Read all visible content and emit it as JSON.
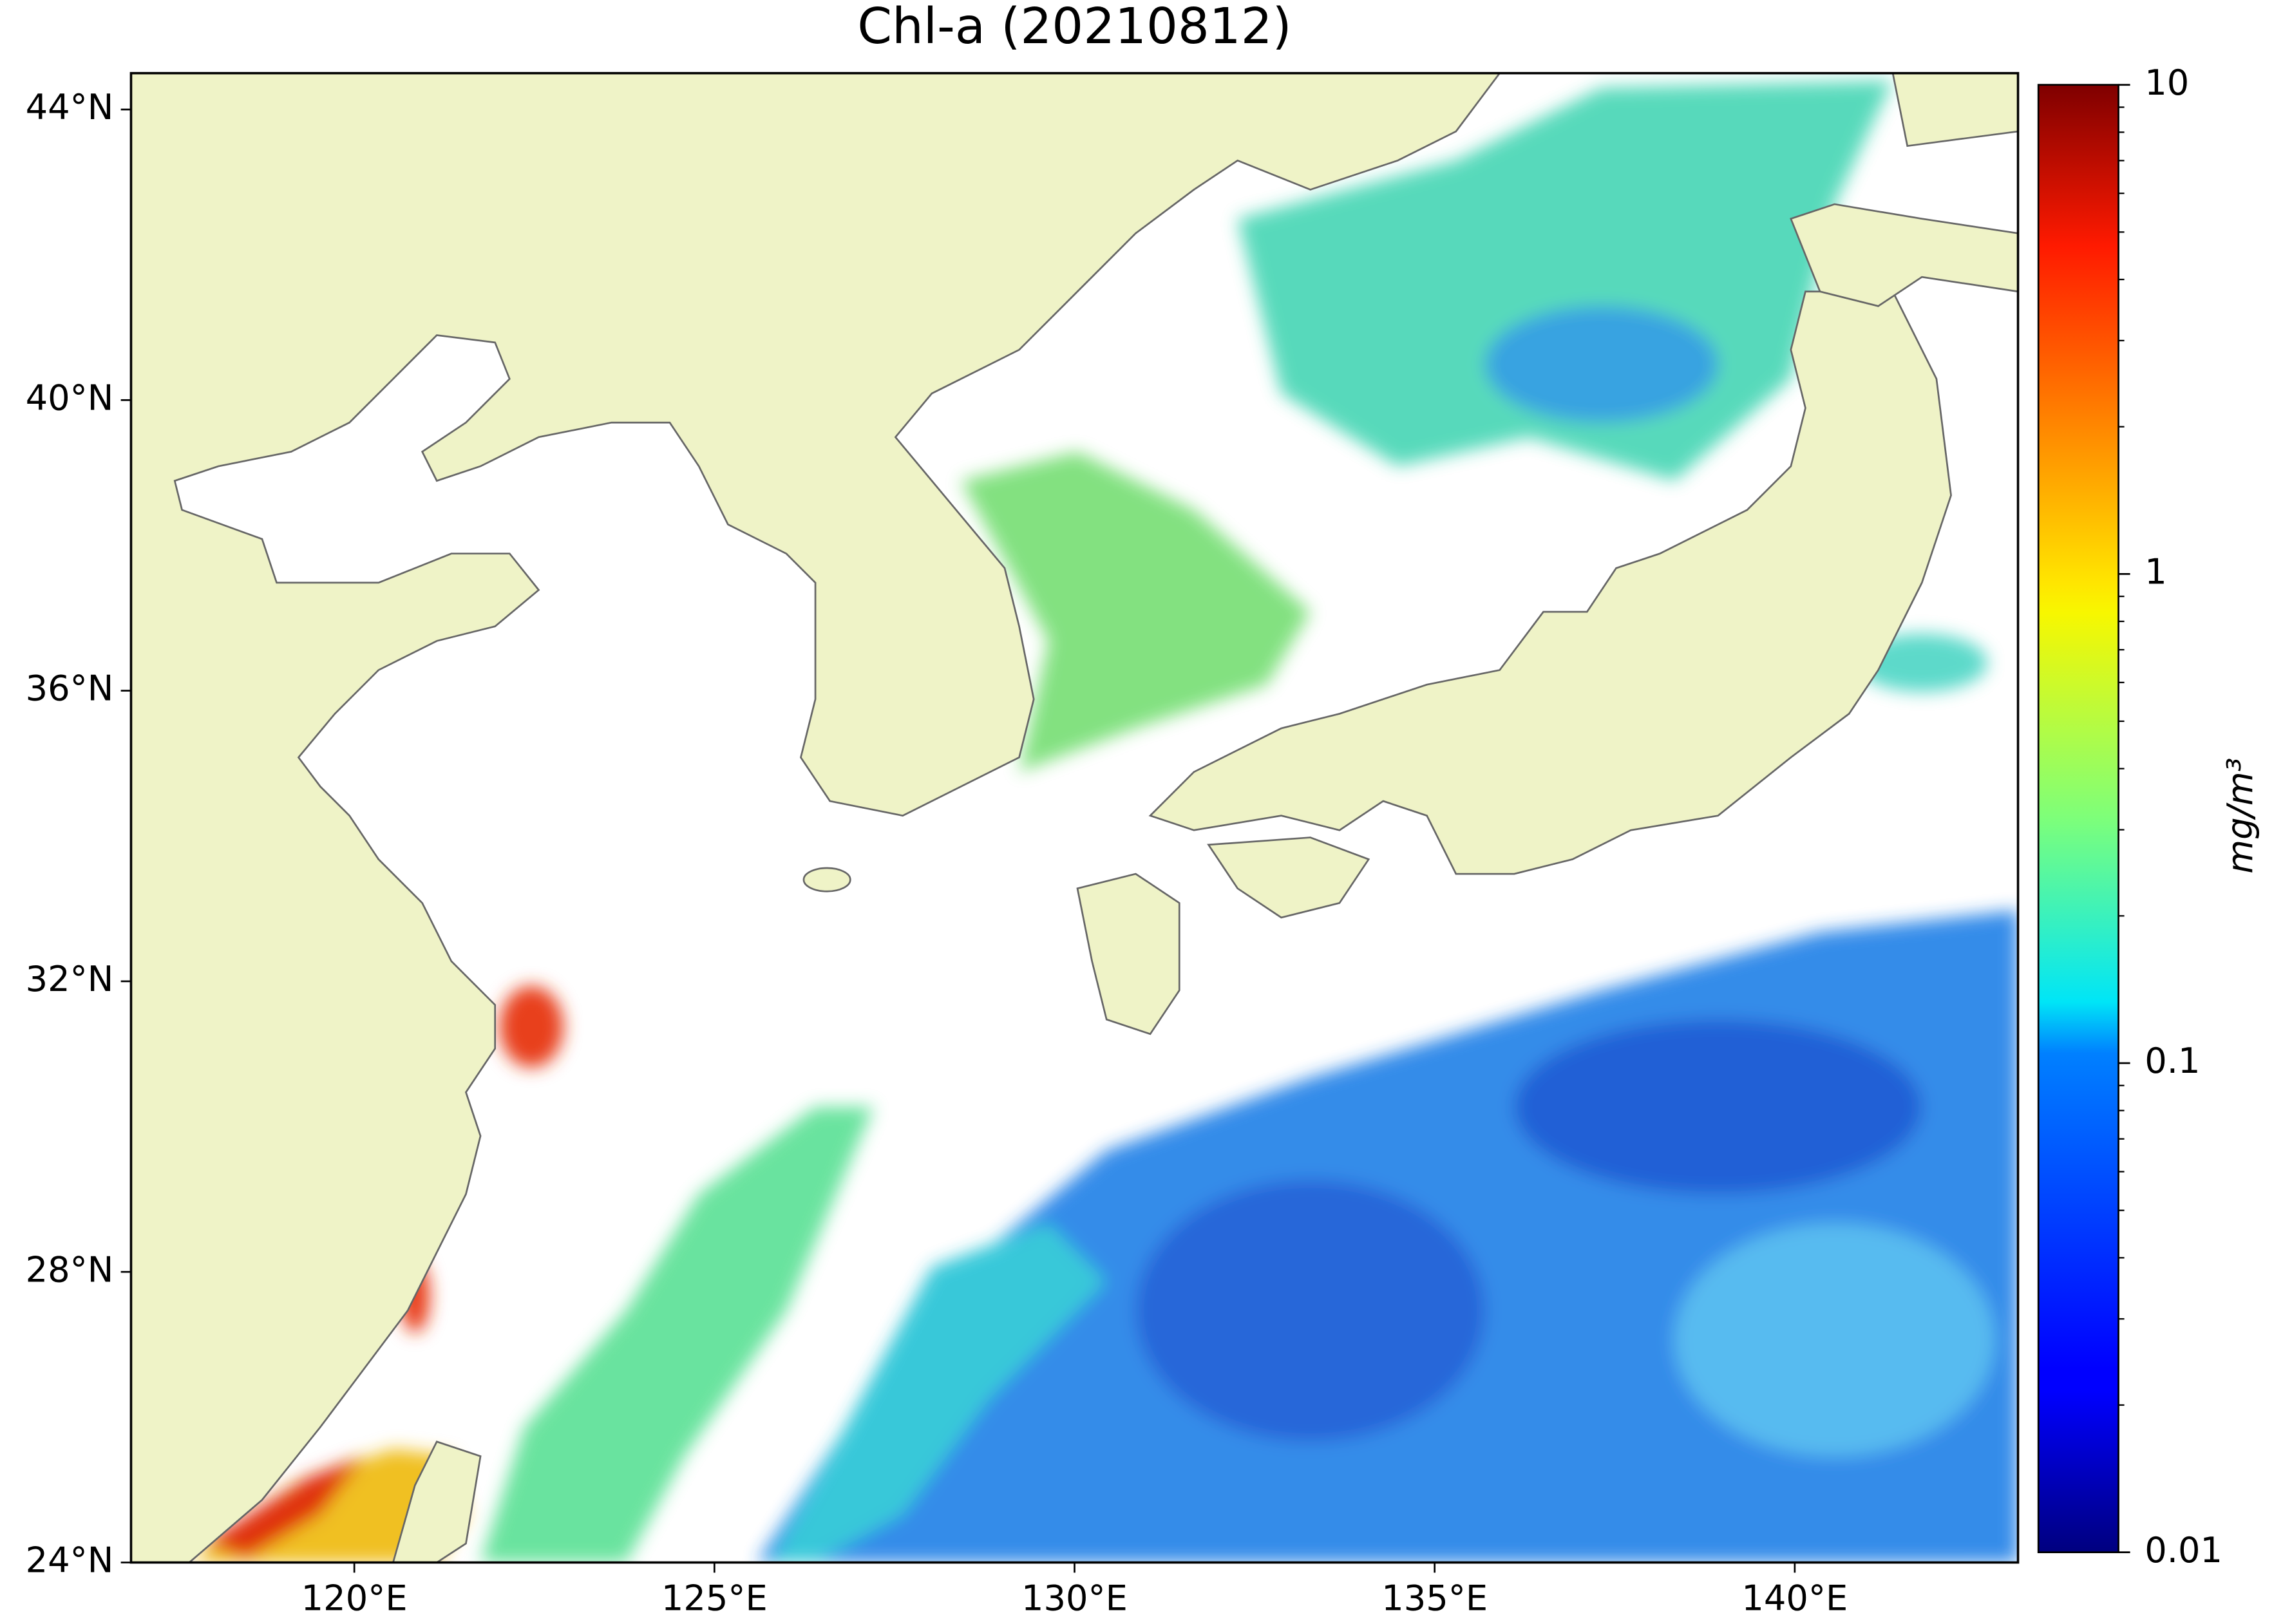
{
  "chart_data": {
    "type": "map",
    "title": "Chl-a (20210812)",
    "xlim": [
      116.9,
      143.1
    ],
    "ylim": [
      24,
      44.5
    ],
    "xticks": [
      {
        "value": 120,
        "label": "120°E"
      },
      {
        "value": 125,
        "label": "125°E"
      },
      {
        "value": 130,
        "label": "130°E"
      },
      {
        "value": 135,
        "label": "135°E"
      },
      {
        "value": 140,
        "label": "140°E"
      }
    ],
    "yticks": [
      {
        "value": 24,
        "label": "24°N"
      },
      {
        "value": 28,
        "label": "28°N"
      },
      {
        "value": 32,
        "label": "32°N"
      },
      {
        "value": 36,
        "label": "36°N"
      },
      {
        "value": 40,
        "label": "40°N"
      },
      {
        "value": 44,
        "label": "44°N"
      }
    ],
    "colorbar": {
      "label": "mg/m³",
      "lim": [
        0.01,
        10
      ],
      "ticks": [
        0.01,
        0.1,
        1,
        10
      ],
      "log_scale": true,
      "colormap": "jet"
    }
  }
}
